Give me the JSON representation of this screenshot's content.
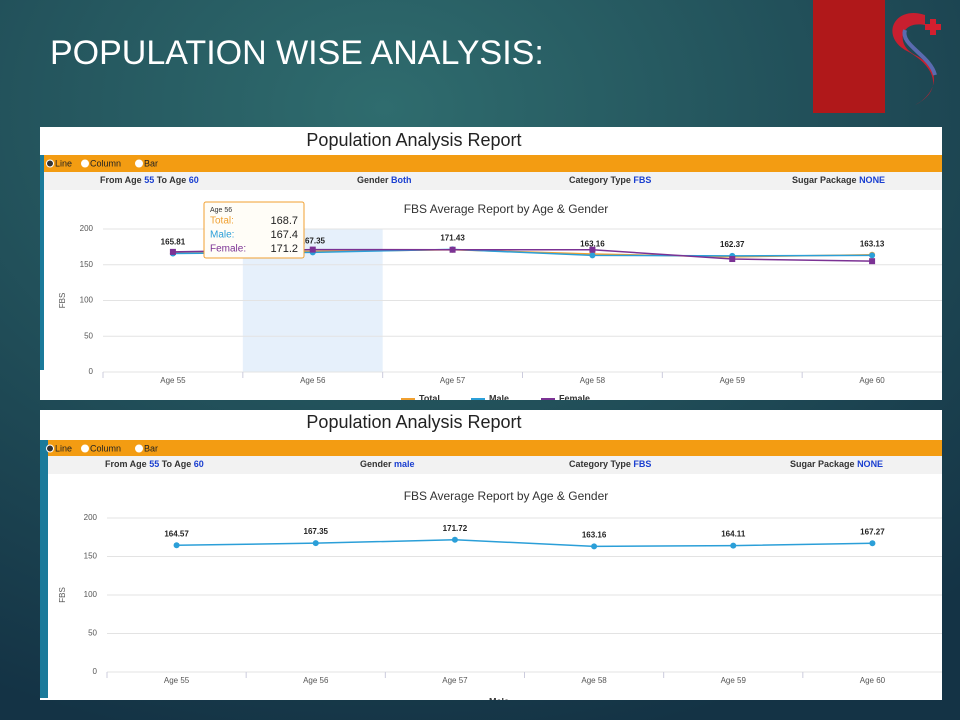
{
  "slide_title": "POPULATION WISE ANALYSIS:",
  "reports": [
    {
      "title": "Population Analysis Report",
      "options": [
        "Line",
        "Column",
        "Bar"
      ],
      "filters": {
        "from_label": "From Age",
        "from": "55",
        "to_label": "To Age",
        "to": "60",
        "gender_label": "Gender",
        "gender": "Both",
        "category_label": "Category Type",
        "category": "FBS",
        "sugar_label": "Sugar Package",
        "sugar": "NONE"
      },
      "tooltip": {
        "title": "Age 56",
        "rows": [
          {
            "label": "Total:",
            "value": 168.7
          },
          {
            "label": "Male:",
            "value": 167.4
          },
          {
            "label": "Female:",
            "value": 171.2
          }
        ]
      }
    },
    {
      "title": "Population Analysis Report",
      "options": [
        "Line",
        "Column",
        "Bar"
      ],
      "filters": {
        "from_label": "From Age",
        "from": "55",
        "to_label": "To Age",
        "to": "60",
        "gender_label": "Gender",
        "gender": "male",
        "category_label": "Category Type",
        "category": "FBS",
        "sugar_label": "Sugar Package",
        "sugar": "NONE"
      }
    }
  ],
  "chart_data": [
    {
      "type": "line",
      "title": "FBS Average Report by Age & Gender",
      "y_label": "FBS",
      "categories": [
        "Age 55",
        "Age 56",
        "Age 57",
        "Age 58",
        "Age 59",
        "Age 60"
      ],
      "series": [
        {
          "name": "Total",
          "color": "#f0a030",
          "values": [
            166,
            168.7,
            171,
            165,
            161,
            164
          ]
        },
        {
          "name": "Male",
          "color": "#2b9fd8",
          "values": [
            165.81,
            167.35,
            171.43,
            163.16,
            162.37,
            163.13
          ],
          "labeled": true
        },
        {
          "name": "Female",
          "color": "#7b3294",
          "values": [
            168,
            171.2,
            171,
            171,
            158,
            155
          ]
        }
      ],
      "ylim": [
        0,
        200
      ],
      "yticks": [
        0,
        50,
        100,
        150,
        200
      ],
      "grid": true
    },
    {
      "type": "line",
      "title": "FBS Average Report by Age & Gender",
      "y_label": "FBS",
      "categories": [
        "Age 55",
        "Age 56",
        "Age 57",
        "Age 58",
        "Age 59",
        "Age 60"
      ],
      "series": [
        {
          "name": "Male",
          "color": "#2b9fd8",
          "values": [
            164.57,
            167.35,
            171.72,
            163.16,
            164.11,
            167.27
          ],
          "labeled": true
        }
      ],
      "ylim": [
        0,
        200
      ],
      "yticks": [
        0,
        50,
        100,
        150,
        200
      ],
      "grid": true
    }
  ]
}
